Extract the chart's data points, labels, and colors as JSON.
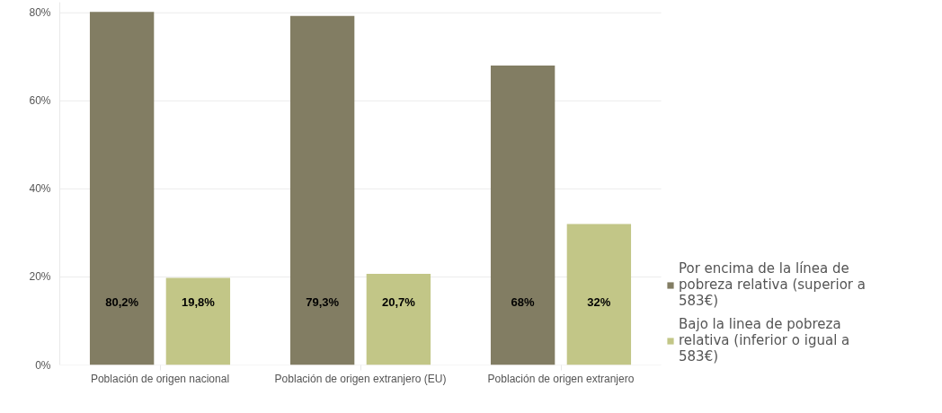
{
  "chart_data": {
    "type": "bar",
    "categories": [
      "Población de origen nacional",
      "Población de origen extranjero (EU)",
      "Población de origen extranjero"
    ],
    "series": [
      {
        "name": "Por encima de la línea de pobreza relativa (superior a 583€)",
        "color": "#827d63",
        "values": [
          80.2,
          79.3,
          68
        ],
        "value_labels": [
          "80,2%",
          "79,3%",
          "68%"
        ]
      },
      {
        "name": "Bajo la linea de pobreza relativa (inferior o igual a 583€)",
        "color": "#c2c687",
        "values": [
          19.8,
          20.7,
          32
        ],
        "value_labels": [
          "19,8%",
          "20,7%",
          "32%"
        ]
      }
    ],
    "ylim": [
      0,
      82.4
    ],
    "yticks": [
      {
        "value": 0,
        "label": "0%"
      },
      {
        "value": 20,
        "label": "20%"
      },
      {
        "value": 40,
        "label": "40%"
      },
      {
        "value": 60,
        "label": "60%"
      },
      {
        "value": 80,
        "label": "80%"
      }
    ],
    "grid": "y",
    "legend": "bottom right"
  }
}
